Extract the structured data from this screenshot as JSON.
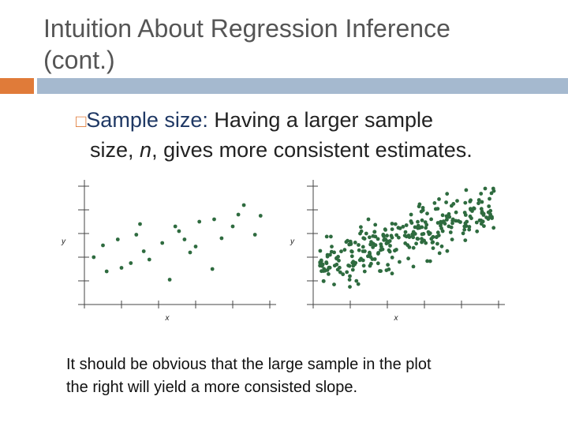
{
  "slide": {
    "title_line1": "Intuition About Regression Inference",
    "title_line2": "(cont.)",
    "bullet_marker": "□",
    "bullet_label": "Sample size:",
    "bullet_text_1": " Having a larger sample",
    "bullet_text_2a": "size, ",
    "bullet_text_2n": "n",
    "bullet_text_2b": ", gives more consistent estimates.",
    "caption_line1": "It should be obvious that the large sample in the plot",
    "caption_line2": "the right will yield a more consisted slope."
  },
  "colors": {
    "points": "#2e6b3f",
    "axis": "#444444",
    "accent": "#e07b39",
    "bar": "#a5b9cf"
  },
  "chart_data": [
    {
      "type": "scatter",
      "name": "small-sample",
      "xlabel": "x",
      "ylabel": "y",
      "xlim": [
        0,
        10
      ],
      "ylim": [
        0,
        10
      ],
      "points": [
        [
          0.5,
          4.0
        ],
        [
          1.2,
          2.8
        ],
        [
          1.8,
          5.5
        ],
        [
          2.5,
          3.5
        ],
        [
          3.0,
          6.8
        ],
        [
          3.5,
          3.8
        ],
        [
          4.2,
          5.2
        ],
        [
          4.6,
          2.1
        ],
        [
          5.1,
          6.2
        ],
        [
          5.7,
          4.4
        ],
        [
          6.2,
          7.0
        ],
        [
          6.9,
          3.0
        ],
        [
          7.4,
          5.6
        ],
        [
          8.0,
          6.6
        ],
        [
          8.6,
          8.4
        ],
        [
          9.2,
          5.9
        ],
        [
          1.0,
          5.0
        ],
        [
          2.0,
          3.1
        ],
        [
          3.2,
          4.5
        ],
        [
          4.9,
          6.6
        ],
        [
          6.0,
          4.9
        ],
        [
          7.0,
          7.2
        ],
        [
          8.3,
          7.6
        ],
        [
          9.5,
          7.5
        ],
        [
          2.8,
          5.9
        ],
        [
          5.4,
          5.5
        ]
      ]
    },
    {
      "type": "scatter",
      "name": "large-sample",
      "xlabel": "x",
      "ylabel": "y",
      "xlim": [
        0,
        10
      ],
      "ylim": [
        0,
        10
      ],
      "n_points": 300,
      "slope": 0.55,
      "intercept": 3.0,
      "noise": 1.4,
      "seed": 7
    }
  ]
}
